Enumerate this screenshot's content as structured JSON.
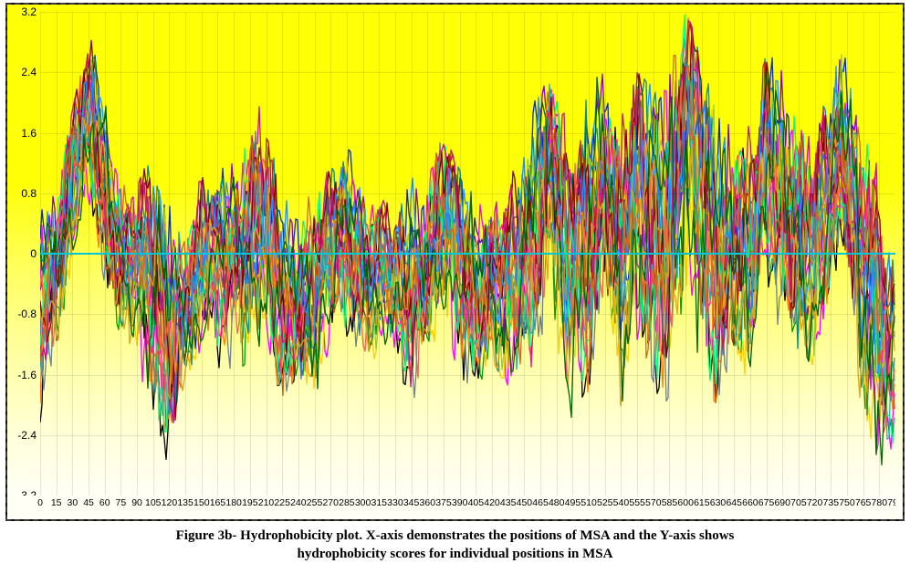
{
  "caption_line1": "Figure 3b- Hydrophobicity plot. X-axis demonstrates the positions of MSA and the Y-axis shows",
  "caption_line2": "hydrophobicity scores for individual positions in MSA",
  "chart": {
    "type": "line",
    "xlim": [
      0,
      795
    ],
    "ylim": [
      -3.2,
      3.2
    ],
    "xtick_step": 15,
    "ytick_step": 0.8,
    "xtick_start": 0,
    "xtick_end": 795,
    "ytick_start": -3.2,
    "ytick_end": 3.2,
    "axis_font_size": 11,
    "background_gradient_top": "#ffff05",
    "background_gradient_bottom": "#fffff5",
    "grid_color": "rgba(0,0,0,0.10)",
    "zero_line_color": "#00c8d7",
    "border_color": "#3a3a3a",
    "border_style": "dashed",
    "line_width": 1.3,
    "series_line_colors": [
      "#000000",
      "#0b2fa5",
      "#ff00ff",
      "#00a000",
      "#ff7f00",
      "#7a2e04",
      "#8a00c4",
      "#ffcc00",
      "#008b8b",
      "#ff1493",
      "#2e8b57",
      "#9acd32",
      "#4169e1",
      "#b22222",
      "#20b2aa",
      "#ff6347",
      "#708090",
      "#00ff7f",
      "#800000",
      "#c71585",
      "#1e90ff",
      "#daa520",
      "#d2691e",
      "#006400"
    ],
    "n_series": 24,
    "n_points": 796,
    "envelope_upper": [
      [
        0,
        0.6
      ],
      [
        15,
        0.8
      ],
      [
        30,
        1.9
      ],
      [
        40,
        2.6
      ],
      [
        48,
        3.0
      ],
      [
        60,
        2.4
      ],
      [
        75,
        1.2
      ],
      [
        90,
        0.9
      ],
      [
        105,
        1.4
      ],
      [
        120,
        1.0
      ],
      [
        135,
        0.7
      ],
      [
        150,
        1.0
      ],
      [
        165,
        1.1
      ],
      [
        180,
        1.2
      ],
      [
        195,
        1.6
      ],
      [
        205,
        2.0
      ],
      [
        225,
        1.0
      ],
      [
        240,
        1.0
      ],
      [
        255,
        1.0
      ],
      [
        270,
        1.1
      ],
      [
        285,
        1.4
      ],
      [
        300,
        1.2
      ],
      [
        315,
        0.8
      ],
      [
        330,
        0.7
      ],
      [
        345,
        1.0
      ],
      [
        360,
        1.0
      ],
      [
        375,
        1.6
      ],
      [
        390,
        1.1
      ],
      [
        405,
        0.8
      ],
      [
        420,
        1.2
      ],
      [
        435,
        1.0
      ],
      [
        450,
        1.3
      ],
      [
        465,
        2.4
      ],
      [
        475,
        2.8
      ],
      [
        490,
        1.4
      ],
      [
        510,
        2.2
      ],
      [
        525,
        2.9
      ],
      [
        540,
        1.8
      ],
      [
        555,
        2.4
      ],
      [
        570,
        2.2
      ],
      [
        585,
        2.5
      ],
      [
        600,
        3.2
      ],
      [
        615,
        2.7
      ],
      [
        630,
        2.0
      ],
      [
        645,
        2.4
      ],
      [
        660,
        1.6
      ],
      [
        675,
        2.7
      ],
      [
        690,
        2.4
      ],
      [
        705,
        2.2
      ],
      [
        720,
        1.9
      ],
      [
        735,
        2.3
      ],
      [
        745,
        2.7
      ],
      [
        760,
        2.2
      ],
      [
        775,
        1.3
      ],
      [
        790,
        0.6
      ],
      [
        795,
        0.4
      ]
    ],
    "envelope_lower": [
      [
        0,
        -2.4
      ],
      [
        15,
        -1.6
      ],
      [
        30,
        -0.6
      ],
      [
        40,
        0.2
      ],
      [
        48,
        0.6
      ],
      [
        60,
        -0.4
      ],
      [
        75,
        -1.1
      ],
      [
        90,
        -1.4
      ],
      [
        105,
        -2.4
      ],
      [
        120,
        -2.8
      ],
      [
        135,
        -1.6
      ],
      [
        150,
        -1.5
      ],
      [
        165,
        -1.5
      ],
      [
        180,
        -1.6
      ],
      [
        195,
        -1.4
      ],
      [
        205,
        -1.2
      ],
      [
        225,
        -1.9
      ],
      [
        240,
        -1.6
      ],
      [
        255,
        -2.0
      ],
      [
        270,
        -1.4
      ],
      [
        285,
        -1.2
      ],
      [
        300,
        -1.6
      ],
      [
        315,
        -1.3
      ],
      [
        330,
        -1.4
      ],
      [
        345,
        -2.0
      ],
      [
        360,
        -1.5
      ],
      [
        375,
        -1.2
      ],
      [
        390,
        -1.8
      ],
      [
        405,
        -2.0
      ],
      [
        420,
        -1.4
      ],
      [
        435,
        -1.8
      ],
      [
        450,
        -1.9
      ],
      [
        465,
        -1.6
      ],
      [
        475,
        -0.4
      ],
      [
        490,
        -2.4
      ],
      [
        510,
        -1.8
      ],
      [
        525,
        -0.4
      ],
      [
        540,
        -2.2
      ],
      [
        555,
        -1.6
      ],
      [
        570,
        -2.4
      ],
      [
        585,
        -2.5
      ],
      [
        600,
        -0.6
      ],
      [
        615,
        -1.8
      ],
      [
        630,
        -2.0
      ],
      [
        645,
        -1.2
      ],
      [
        660,
        -1.8
      ],
      [
        675,
        -0.6
      ],
      [
        690,
        -1.2
      ],
      [
        705,
        -1.3
      ],
      [
        720,
        -1.5
      ],
      [
        735,
        -0.8
      ],
      [
        745,
        -0.2
      ],
      [
        760,
        -1.8
      ],
      [
        775,
        -2.6
      ],
      [
        790,
        -3.0
      ],
      [
        795,
        -2.0
      ]
    ],
    "envelope_mid_offsets": [
      [
        30,
        0.3
      ],
      [
        60,
        -0.2
      ],
      [
        90,
        0.1
      ],
      [
        130,
        -0.2
      ],
      [
        180,
        0.3
      ],
      [
        230,
        -0.3
      ],
      [
        280,
        0.2
      ],
      [
        330,
        -0.1
      ],
      [
        380,
        0.3
      ],
      [
        430,
        -0.2
      ],
      [
        470,
        0.4
      ],
      [
        510,
        -0.2
      ],
      [
        560,
        0.3
      ],
      [
        600,
        0.5
      ],
      [
        640,
        -0.3
      ],
      [
        680,
        0.2
      ],
      [
        720,
        -0.3
      ],
      [
        750,
        0.3
      ],
      [
        790,
        -0.4
      ]
    ]
  }
}
